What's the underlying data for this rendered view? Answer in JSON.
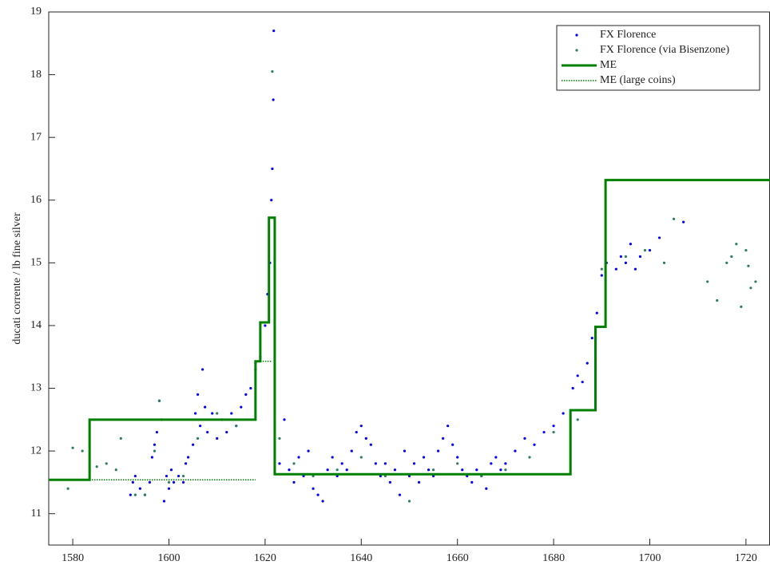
{
  "chart_data": {
    "type": "scatter",
    "ylabel": "ducati corrente / lb fine silver",
    "xlim": [
      1575,
      1725
    ],
    "ylim": [
      10.5,
      19
    ],
    "xticks": [
      1580,
      1600,
      1620,
      1640,
      1660,
      1680,
      1700,
      1720
    ],
    "yticks": [
      11,
      12,
      13,
      14,
      15,
      16,
      17,
      18,
      19
    ],
    "legend": "upper right",
    "series": [
      {
        "name": "FX Florence",
        "type": "scatter",
        "color": "#0000ff",
        "x": [
          1592,
          1592.5,
          1593,
          1594,
          1595,
          1596,
          1596.5,
          1597,
          1597.5,
          1598,
          1598.5,
          1599,
          1599.5,
          1600,
          1600.5,
          1601,
          1602,
          1603,
          1603.5,
          1604,
          1605,
          1605.5,
          1606,
          1606.5,
          1607,
          1607.5,
          1608,
          1609,
          1610,
          1611,
          1612,
          1613,
          1614,
          1615,
          1616,
          1617,
          1618,
          1619,
          1620,
          1620.5,
          1621,
          1621.3,
          1621.5,
          1621.7,
          1621.8,
          1623,
          1624,
          1625,
          1626,
          1627,
          1628,
          1629,
          1630,
          1631,
          1632,
          1633,
          1634,
          1635,
          1636,
          1637,
          1638,
          1639,
          1640,
          1641,
          1642,
          1643,
          1644,
          1645,
          1646,
          1647,
          1648,
          1649,
          1650,
          1651,
          1652,
          1653,
          1654,
          1655,
          1656,
          1657,
          1658,
          1659,
          1660,
          1661,
          1662,
          1663,
          1664,
          1665,
          1666,
          1667,
          1668,
          1669,
          1670,
          1672,
          1674,
          1676,
          1678,
          1680,
          1682,
          1684,
          1685,
          1686,
          1687,
          1688,
          1689,
          1690,
          1691,
          1693,
          1694,
          1695,
          1696,
          1697,
          1698,
          1700,
          1702,
          1707
        ],
        "values": [
          11.3,
          11.5,
          11.6,
          11.4,
          11.3,
          11.5,
          11.9,
          12.1,
          12.3,
          12.8,
          12.5,
          11.2,
          11.6,
          11.4,
          11.7,
          11.5,
          11.6,
          11.5,
          11.8,
          11.9,
          12.1,
          12.6,
          12.9,
          12.4,
          13.3,
          12.7,
          12.3,
          12.6,
          12.2,
          12.5,
          12.3,
          12.6,
          12.4,
          12.7,
          12.9,
          13.0,
          13.3,
          13.5,
          14.0,
          14.5,
          15.0,
          16.0,
          16.5,
          17.6,
          18.7,
          11.8,
          12.5,
          11.7,
          11.5,
          11.9,
          11.6,
          12.0,
          11.4,
          11.3,
          11.2,
          11.7,
          11.9,
          11.6,
          11.8,
          11.7,
          12.0,
          12.3,
          12.4,
          12.2,
          12.1,
          11.8,
          11.6,
          11.8,
          11.5,
          11.7,
          11.3,
          12.0,
          11.6,
          11.8,
          11.5,
          11.9,
          11.7,
          11.6,
          12.0,
          12.2,
          12.4,
          12.1,
          11.9,
          11.7,
          11.6,
          11.5,
          11.7,
          11.6,
          11.4,
          11.8,
          11.9,
          11.7,
          11.8,
          12.0,
          12.2,
          12.1,
          12.3,
          12.4,
          12.6,
          13.0,
          13.2,
          13.1,
          13.4,
          13.8,
          14.2,
          14.8,
          15.0,
          14.9,
          15.1,
          15.0,
          15.3,
          14.9,
          15.1,
          15.2,
          15.4,
          15.65
        ]
      },
      {
        "name": "FX Florence (via Bisenzone)",
        "type": "scatter",
        "color": "#2e7d5e",
        "x": [
          1579,
          1580,
          1582,
          1585,
          1587,
          1589,
          1590,
          1593,
          1595,
          1597,
          1598,
          1600,
          1603,
          1606,
          1610,
          1614,
          1618,
          1621.5,
          1623,
          1626,
          1630,
          1635,
          1640,
          1645,
          1650,
          1655,
          1660,
          1665,
          1670,
          1675,
          1680,
          1685,
          1690,
          1695,
          1699,
          1703,
          1705,
          1712,
          1714,
          1716,
          1717,
          1718,
          1719,
          1720,
          1720.5,
          1721,
          1722
        ],
        "values": [
          11.4,
          12.05,
          12.0,
          11.75,
          11.8,
          11.7,
          12.2,
          11.3,
          11.3,
          12.0,
          12.8,
          11.5,
          11.6,
          12.2,
          12.6,
          12.4,
          13.4,
          18.05,
          12.2,
          11.8,
          11.6,
          11.7,
          11.9,
          11.6,
          11.2,
          11.7,
          11.8,
          11.6,
          11.7,
          11.9,
          12.3,
          12.5,
          14.9,
          15.1,
          15.2,
          15.0,
          15.7,
          14.7,
          14.4,
          15.0,
          15.1,
          15.3,
          14.3,
          15.2,
          14.95,
          14.6,
          14.7
        ]
      },
      {
        "name": "ME",
        "type": "line",
        "style": "solid",
        "color": "#008000",
        "x": [
          1575,
          1583.5,
          1583.5,
          1618,
          1618,
          1619,
          1619,
          1620.8,
          1620.8,
          1622,
          1622,
          1683.5,
          1683.5,
          1688.7,
          1688.7,
          1690.8,
          1690.8,
          1725
        ],
        "values": [
          11.54,
          11.54,
          12.5,
          12.5,
          13.43,
          13.43,
          14.05,
          14.05,
          15.72,
          15.72,
          11.63,
          11.63,
          12.65,
          12.65,
          13.98,
          13.98,
          16.32,
          16.32
        ]
      },
      {
        "name": "ME (large coins)",
        "type": "line",
        "style": "dotted",
        "color": "#008000",
        "x": [
          1575,
          1618,
          1618,
          1618,
          1621.5
        ],
        "values": [
          11.54,
          11.54,
          null,
          13.43,
          13.43
        ]
      }
    ]
  }
}
